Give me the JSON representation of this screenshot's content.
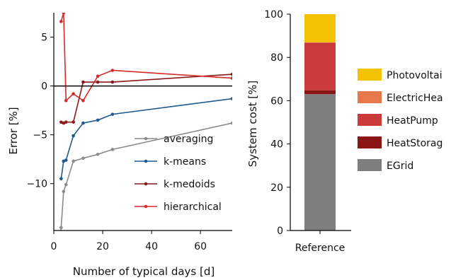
{
  "chart_data": [
    {
      "type": "line",
      "xlabel": "Number of typical days [d]",
      "ylabel": "Error [%]",
      "xlim": [
        0,
        73
      ],
      "ylim": [
        -14.8,
        7.5
      ],
      "xticks": [
        "0",
        "20",
        "40",
        "60"
      ],
      "yticks": [
        "5",
        "0",
        "−5",
        "−10"
      ],
      "xtick_values": [
        0,
        20,
        40,
        60
      ],
      "ytick_values": [
        5,
        0,
        -5,
        -10
      ],
      "grid": false,
      "zero_line": true,
      "legend": "lower-right",
      "series": [
        {
          "name": "averaging",
          "color": "#8a8a8a",
          "x": [
            2,
            3,
            4,
            5,
            8,
            12,
            18,
            24,
            73
          ],
          "y": [
            -16,
            -14.5,
            -10.8,
            -10.1,
            -7.7,
            -7.4,
            -7.0,
            -6.5,
            -3.8
          ]
        },
        {
          "name": "k-means",
          "color": "#1f5a8c",
          "x": [
            3,
            4,
            5,
            8,
            12,
            18,
            24,
            73
          ],
          "y": [
            -9.5,
            -7.7,
            -7.6,
            -5.1,
            -3.8,
            -3.5,
            -2.9,
            -1.3
          ]
        },
        {
          "name": "k-medoids",
          "color": "#8b1a1a",
          "x": [
            3,
            4,
            5,
            8,
            12,
            18,
            24,
            73
          ],
          "y": [
            -3.7,
            -3.8,
            -3.7,
            -3.7,
            0.4,
            0.4,
            0.4,
            1.2
          ]
        },
        {
          "name": "hierarchical",
          "color": "#d42a2a",
          "x": [
            3,
            4,
            5,
            8,
            12,
            18,
            24,
            73
          ],
          "y": [
            6.6,
            7.5,
            -1.5,
            -0.8,
            -1.5,
            1.0,
            1.6,
            0.8
          ]
        }
      ]
    },
    {
      "type": "bar",
      "stacked": true,
      "ylabel": "System cost [%]",
      "categories": [
        "Reference"
      ],
      "ylim": [
        0,
        100
      ],
      "yticks": [
        "0",
        "20",
        "40",
        "60",
        "80",
        "100"
      ],
      "ytick_values": [
        0,
        20,
        40,
        60,
        80,
        100
      ],
      "legend": "right",
      "series": [
        {
          "name": "EGrid",
          "color": "#7f7f7f",
          "values": [
            63.0
          ]
        },
        {
          "name": "HeatStorag",
          "color": "#8b1515",
          "values": [
            1.8
          ]
        },
        {
          "name": "HeatPump",
          "color": "#cc3b3b",
          "values": [
            22.0
          ]
        },
        {
          "name": "ElectricHea",
          "color": "#e6784a",
          "values": [
            0.2
          ]
        },
        {
          "name": "Photovoltai",
          "color": "#f5c200",
          "values": [
            13.0
          ]
        }
      ],
      "legend_order": [
        "Photovoltai",
        "ElectricHea",
        "HeatPump",
        "HeatStorag",
        "EGrid"
      ]
    }
  ]
}
